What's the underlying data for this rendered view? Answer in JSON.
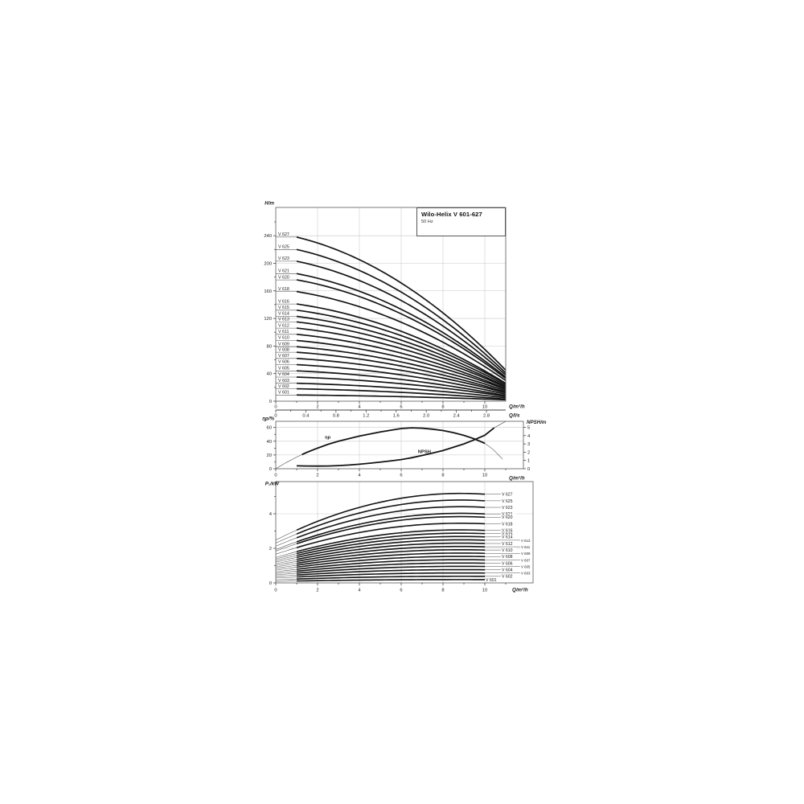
{
  "chart_data": [
    {
      "type": "line",
      "id": "head-flow",
      "title": "Wilo-Helix V 601-627",
      "subtitle": "50 Hz",
      "ylabel": "H/m",
      "xlabel": "Q/m³/h",
      "x2label": "Q/l/s",
      "xlim": [
        0,
        11.0
      ],
      "ylim": [
        0,
        281
      ],
      "xticks": [
        0,
        2,
        4,
        6,
        8,
        10
      ],
      "yticks": [
        0,
        40,
        80,
        120,
        160,
        200,
        240
      ],
      "x2ticks": [
        0,
        0.4,
        0.8,
        1.2,
        1.6,
        2.0,
        2.4,
        2.8
      ],
      "x2tick_labels": [
        "0",
        "0.4",
        "0.8",
        "1.2",
        "1.6",
        "2.0",
        "2.4",
        "2.8"
      ],
      "grid": true,
      "q_thick_start": 1,
      "q_end": 11.0,
      "series_note": "head in m at Q=1 m3/h (H1) and at max flow 11 m3/h (He)",
      "series": [
        {
          "name": "V 627",
          "H1": 238,
          "He": 45
        },
        {
          "name": "V 625",
          "H1": 220,
          "He": 41
        },
        {
          "name": "V 623",
          "H1": 203,
          "He": 38
        },
        {
          "name": "V 621",
          "H1": 185,
          "He": 35
        },
        {
          "name": "V 620",
          "H1": 176,
          "He": 33
        },
        {
          "name": "V 618",
          "H1": 159,
          "He": 30
        },
        {
          "name": "V 616",
          "H1": 141,
          "He": 26
        },
        {
          "name": "V 615",
          "H1": 132,
          "He": 25
        },
        {
          "name": "V 614",
          "H1": 123,
          "He": 23
        },
        {
          "name": "V 613",
          "H1": 115,
          "He": 21
        },
        {
          "name": "V 612",
          "H1": 106,
          "He": 20
        },
        {
          "name": "V 611",
          "H1": 97,
          "He": 18
        },
        {
          "name": "V 610",
          "H1": 88,
          "He": 17
        },
        {
          "name": "V 609",
          "H1": 79,
          "He": 15
        },
        {
          "name": "V 608",
          "H1": 71,
          "He": 13
        },
        {
          "name": "V 607",
          "H1": 62,
          "He": 12
        },
        {
          "name": "V 606",
          "H1": 53,
          "He": 10
        },
        {
          "name": "V 605",
          "H1": 44,
          "He": 8
        },
        {
          "name": "V 604",
          "H1": 35,
          "He": 7
        },
        {
          "name": "V 603",
          "H1": 26,
          "He": 5
        },
        {
          "name": "V 602",
          "H1": 18,
          "He": 3
        },
        {
          "name": "V 601",
          "H1": 9,
          "He": 2
        }
      ]
    },
    {
      "type": "line",
      "id": "efficiency-npsh",
      "ylabel_left": "ηp/%",
      "ylabel_right": "NPSH/m",
      "xlabel": "Q/m³/h",
      "xlim": [
        0,
        11.85
      ],
      "ylim_left": [
        0,
        69
      ],
      "ylim_right": [
        0,
        5.73
      ],
      "xticks": [
        0,
        2,
        4,
        6,
        8,
        10
      ],
      "yticks_left": [
        0,
        20,
        40,
        60
      ],
      "yticks_right": [
        0,
        1,
        2,
        3,
        4,
        5
      ],
      "grid": true,
      "series": [
        {
          "name": "ηp",
          "axis": "left",
          "thick": [
            1.25,
            10
          ],
          "x": [
            0,
            0.5,
            1,
            1.25,
            1.5,
            2,
            2.5,
            3,
            4,
            5,
            5.5,
            6,
            6.5,
            7,
            7.5,
            8,
            8.5,
            9,
            9.5,
            10,
            10.4,
            10.85
          ],
          "y": [
            0,
            9,
            17,
            20.5,
            24,
            30,
            35.5,
            40,
            47.5,
            53.5,
            56,
            58.5,
            59.5,
            59,
            57.5,
            55.5,
            52.5,
            48.5,
            43.5,
            37,
            28,
            14
          ]
        },
        {
          "name": "NPSH",
          "axis": "right",
          "thick": [
            1,
            10.45
          ],
          "x": [
            1,
            1.5,
            2,
            2.5,
            3,
            3.5,
            4,
            4.5,
            5,
            5.5,
            6,
            6.5,
            7,
            7.5,
            8,
            8.5,
            9,
            9.5,
            10,
            10.45,
            10.7,
            11.0
          ],
          "y": [
            0.35,
            0.33,
            0.32,
            0.33,
            0.38,
            0.45,
            0.55,
            0.67,
            0.8,
            0.95,
            1.1,
            1.33,
            1.6,
            1.9,
            2.2,
            2.6,
            3.0,
            3.5,
            4.05,
            4.95,
            5.3,
            5.72
          ]
        }
      ],
      "annotations": [
        {
          "text": "ηp",
          "q": 2.35,
          "v": 44,
          "axis": "left"
        },
        {
          "text": "NPSH",
          "q": 6.8,
          "v": 1.9,
          "axis": "right"
        }
      ]
    },
    {
      "type": "line",
      "id": "power",
      "ylabel": "P₁/kW",
      "xlabel": "Q/m³/h",
      "xlim": [
        0,
        12.3
      ],
      "ylim": [
        0,
        5.86
      ],
      "xticks": [
        0,
        2,
        4,
        6,
        8,
        10
      ],
      "yticks": [
        0,
        2,
        4
      ],
      "grid": true,
      "series_note": "input power kW at Q=0 (P0) and Q=10 m3/h (P10)",
      "series": [
        {
          "name": "V 627",
          "P0": 2.48,
          "P10": 5.13,
          "label_col": 0
        },
        {
          "name": "V 625",
          "P0": 2.3,
          "P10": 4.75,
          "label_col": 0
        },
        {
          "name": "V 623",
          "P0": 2.12,
          "P10": 4.37,
          "label_col": 0
        },
        {
          "name": "V 621",
          "P0": 1.93,
          "P10": 3.99,
          "label_col": 0
        },
        {
          "name": "V 620",
          "P0": 1.84,
          "P10": 3.8,
          "label_col": 0
        },
        {
          "name": "V 618",
          "P0": 1.66,
          "P10": 3.42,
          "label_col": 0
        },
        {
          "name": "V 616",
          "P0": 1.47,
          "P10": 3.04,
          "label_col": 0
        },
        {
          "name": "V 615",
          "P0": 1.38,
          "P10": 2.85,
          "label_col": 0
        },
        {
          "name": "V 614",
          "P0": 1.29,
          "P10": 2.66,
          "label_col": 0
        },
        {
          "name": "V 613",
          "P0": 1.2,
          "P10": 2.47,
          "label_col": 1
        },
        {
          "name": "V 612",
          "P0": 1.1,
          "P10": 2.28,
          "label_col": 0
        },
        {
          "name": "V 611",
          "P0": 1.01,
          "P10": 2.09,
          "label_col": 1
        },
        {
          "name": "V 610",
          "P0": 0.92,
          "P10": 1.9,
          "label_col": 0
        },
        {
          "name": "V 609",
          "P0": 0.83,
          "P10": 1.71,
          "label_col": 1
        },
        {
          "name": "V 608",
          "P0": 0.74,
          "P10": 1.52,
          "label_col": 0
        },
        {
          "name": "V 607",
          "P0": 0.64,
          "P10": 1.33,
          "label_col": 1
        },
        {
          "name": "V 606",
          "P0": 0.55,
          "P10": 1.14,
          "label_col": 0
        },
        {
          "name": "V 605",
          "P0": 0.46,
          "P10": 0.95,
          "label_col": 1
        },
        {
          "name": "V 604",
          "P0": 0.37,
          "P10": 0.76,
          "label_col": 0
        },
        {
          "name": "V 603",
          "P0": 0.28,
          "P10": 0.57,
          "label_col": 1
        },
        {
          "name": "V 602",
          "P0": 0.18,
          "P10": 0.38,
          "label_col": 0
        },
        {
          "name": "V 601",
          "P0": 0.09,
          "P10": 0.19,
          "label_col": 0
        }
      ]
    }
  ]
}
